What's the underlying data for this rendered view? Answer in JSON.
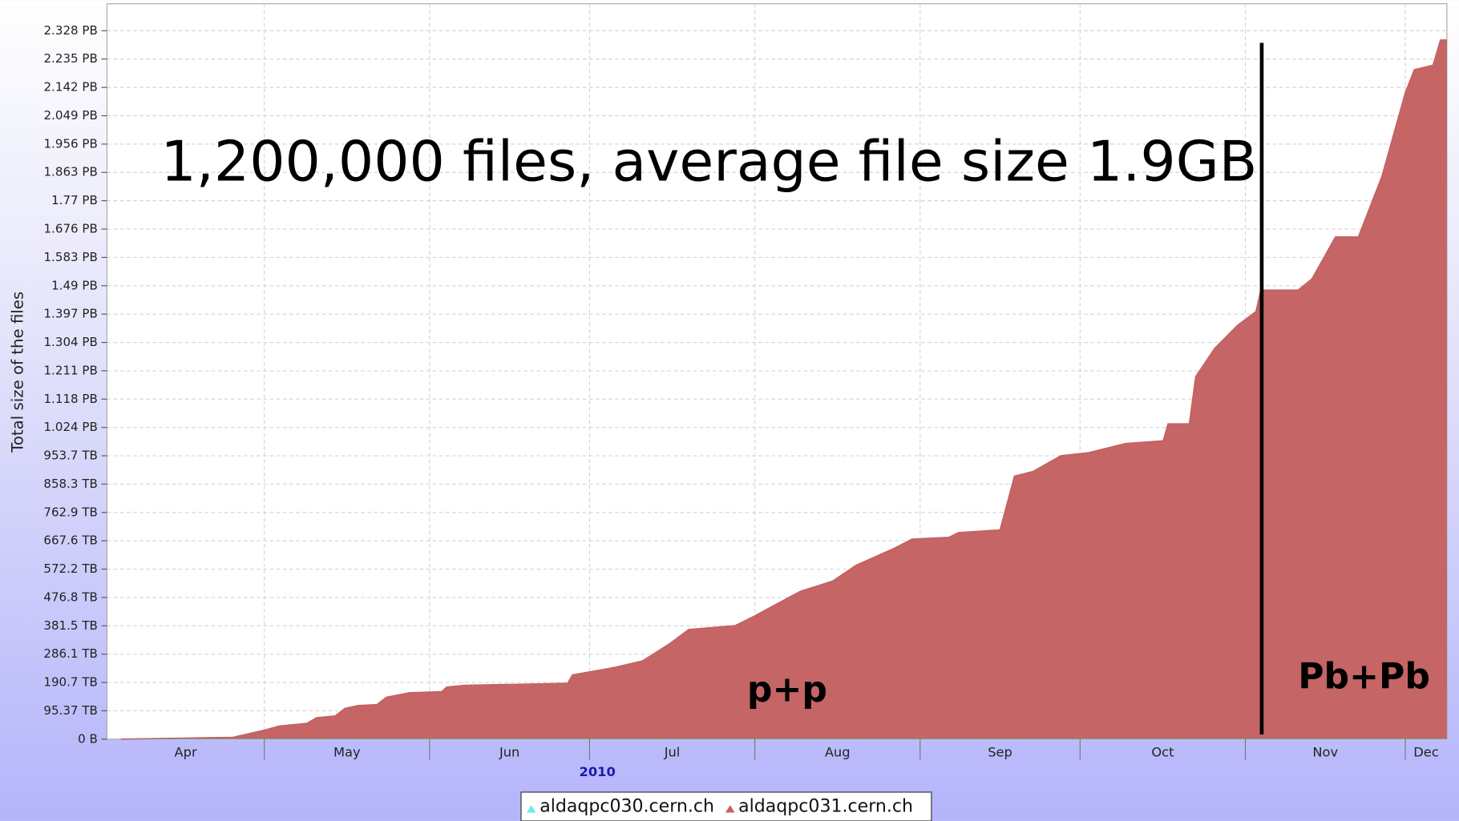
{
  "chart_data": {
    "type": "area",
    "annotations": [
      "1,200,000 files, average file size 1.9GB",
      "p+p",
      "Pb+Pb"
    ],
    "ylabel": "Total size of the files",
    "xlabel": "2010",
    "xlim": [
      91.5,
      342.8
    ],
    "xticks": [
      {
        "value": 91,
        "label": "Apr"
      },
      {
        "value": 121,
        "label": "May"
      },
      {
        "value": 152,
        "label": "Jun"
      },
      {
        "value": 182,
        "label": "Jul"
      },
      {
        "value": 213,
        "label": "Aug"
      },
      {
        "value": 244,
        "label": "Sep"
      },
      {
        "value": 274,
        "label": "Oct"
      },
      {
        "value": 305,
        "label": "Nov"
      },
      {
        "value": 335,
        "label": "Dec"
      }
    ],
    "ylim": [
      0,
      2475
    ],
    "yticks": [
      {
        "value": 0,
        "label": "0 B"
      },
      {
        "value": 95.37,
        "label": "95.37 TB"
      },
      {
        "value": 190.73,
        "label": "190.7 TB"
      },
      {
        "value": 286.1,
        "label": "286.1 TB"
      },
      {
        "value": 381.47,
        "label": "381.5 TB"
      },
      {
        "value": 476.84,
        "label": "476.8 TB"
      },
      {
        "value": 572.2,
        "label": "572.2 TB"
      },
      {
        "value": 667.57,
        "label": "667.6 TB"
      },
      {
        "value": 762.94,
        "label": "762.9 TB"
      },
      {
        "value": 858.31,
        "label": "858.3 TB"
      },
      {
        "value": 953.67,
        "label": "953.7 TB"
      },
      {
        "value": 1049.04,
        "label": "1.024 PB"
      },
      {
        "value": 1144.41,
        "label": "1.118 PB"
      },
      {
        "value": 1239.78,
        "label": "1.211 PB"
      },
      {
        "value": 1335.14,
        "label": "1.304 PB"
      },
      {
        "value": 1430.51,
        "label": "1.397 PB"
      },
      {
        "value": 1525.88,
        "label": "1.49 PB"
      },
      {
        "value": 1621.25,
        "label": "1.583 PB"
      },
      {
        "value": 1716.61,
        "label": "1.676 PB"
      },
      {
        "value": 1811.98,
        "label": "1.77 PB"
      },
      {
        "value": 1907.35,
        "label": "1.863 PB"
      },
      {
        "value": 2002.72,
        "label": "1.956 PB"
      },
      {
        "value": 2098.09,
        "label": "2.049 PB"
      },
      {
        "value": 2193.45,
        "label": "2.142 PB"
      },
      {
        "value": 2288.82,
        "label": "2.235 PB"
      },
      {
        "value": 2384.19,
        "label": "2.328 PB"
      }
    ],
    "grid": true,
    "legend": "bottom",
    "x": [
      94.1,
      115.1,
      121.2,
      123.8,
      129.0,
      130.8,
      134.3,
      136.1,
      138.6,
      142.1,
      143.9,
      148.2,
      154.3,
      155.2,
      158.7,
      177.9,
      178.8,
      186.6,
      191.9,
      193.6,
      197.1,
      200.6,
      209.3,
      212.8,
      216.3,
      221.5,
      227.6,
      232.0,
      239.0,
      242.5,
      249.4,
      251.2,
      259.0,
      261.7,
      265.2,
      270.4,
      275.6,
      282.6,
      289.6,
      290.5,
      294.5,
      295.7,
      299.2,
      303.5,
      307.0,
      307.9,
      314.9,
      317.5,
      321.9,
      326.2,
      330.6,
      335.0,
      336.7,
      340.2,
      341.6,
      342.8
    ],
    "series": [
      {
        "name": "aldaqpc030.cern.ch",
        "color": "#66eeee",
        "values": [
          0,
          0,
          0,
          0,
          0,
          0,
          0,
          0,
          0,
          0,
          0,
          0,
          0,
          0,
          0,
          0,
          0,
          0,
          0,
          0,
          0,
          0,
          0,
          0,
          0,
          0,
          0,
          0,
          0,
          0,
          0,
          0,
          0,
          0,
          0,
          0,
          0,
          0,
          0,
          0,
          0,
          0,
          0,
          0,
          0,
          0,
          0,
          0,
          0,
          0,
          0,
          0,
          0,
          0,
          0,
          0
        ]
      },
      {
        "name": "aldaqpc031.cern.ch",
        "color": "#c46262",
        "values": [
          0,
          6,
          31,
          44,
          53,
          72,
          78,
          103,
          113,
          116,
          141,
          156,
          160,
          175,
          181,
          188,
          216,
          241,
          263,
          282,
          322,
          369,
          382,
          413,
          447,
          497,
          532,
          585,
          641,
          673,
          679,
          695,
          704,
          885,
          901,
          954,
          964,
          995,
          1004,
          1061,
          1061,
          1220,
          1314,
          1392,
          1439,
          1511,
          1511,
          1549,
          1690,
          1690,
          1893,
          2175,
          2253,
          2268,
          2353,
          2353
        ]
      }
    ]
  }
}
